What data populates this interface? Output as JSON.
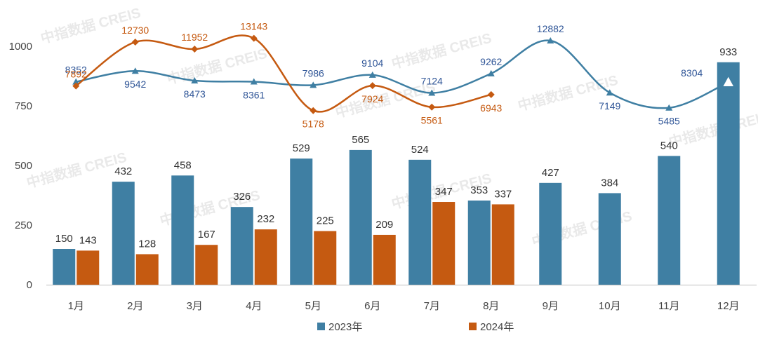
{
  "chart_data": {
    "type": "bar",
    "categories": [
      "1月",
      "2月",
      "3月",
      "4月",
      "5月",
      "6月",
      "7月",
      "8月",
      "9月",
      "10月",
      "11月",
      "12月"
    ],
    "ylim": [
      0,
      1150
    ],
    "yticks": [
      0,
      250,
      500,
      750,
      1000
    ],
    "series": [
      {
        "name": "2023年",
        "color": "#3f7fa3",
        "values": [
          150,
          432,
          458,
          326,
          529,
          565,
          524,
          353,
          427,
          384,
          540,
          933
        ]
      },
      {
        "name": "2024年",
        "color": "#c55a11",
        "values": [
          143,
          128,
          167,
          232,
          225,
          209,
          347,
          337,
          null,
          null,
          null,
          null
        ]
      }
    ],
    "line_series": [
      {
        "color": "#3f7fa3",
        "values": [
          8352,
          9542,
          8473,
          8361,
          7986,
          9104,
          7124,
          9262,
          12882,
          7149,
          5485,
          8304
        ]
      },
      {
        "color": "#c55a11",
        "values": [
          7892,
          12730,
          11952,
          13143,
          5178,
          7924,
          5561,
          6943,
          null,
          null,
          null,
          null
        ]
      }
    ],
    "legend_position": "bottom",
    "grid": false
  },
  "watermark": "中指数据 CREIS"
}
